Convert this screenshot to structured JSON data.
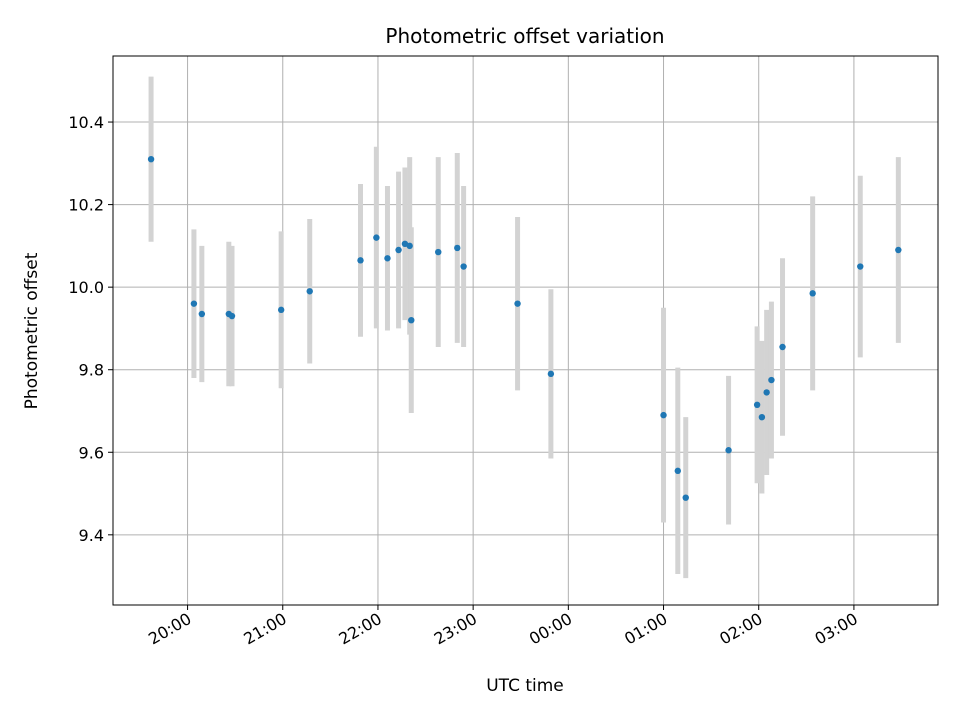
{
  "chart_data": {
    "type": "scatter",
    "title": "Photometric offset variation",
    "xlabel": "UTC time",
    "ylabel": "Photometric offset",
    "x_unit": "clock time (UTC), spanning midnight",
    "xlim": [
      "19:13",
      "03:53"
    ],
    "ylim": [
      9.23,
      10.56
    ],
    "x_ticks": [
      "20:00",
      "21:00",
      "22:00",
      "23:00",
      "00:00",
      "01:00",
      "02:00",
      "03:00"
    ],
    "y_ticks": [
      "9.4",
      "9.6",
      "9.8",
      "10.0",
      "10.2",
      "10.4"
    ],
    "y_tick_values": [
      9.4,
      9.6,
      9.8,
      10.0,
      10.2,
      10.4
    ],
    "grid": true,
    "marker_color": "#1f77b4",
    "errorbar_color": "#d3d3d3",
    "points": [
      {
        "t": "19:37",
        "y": 10.31,
        "err": 0.2
      },
      {
        "t": "20:04",
        "y": 9.96,
        "err": 0.18
      },
      {
        "t": "20:09",
        "y": 9.935,
        "err": 0.165
      },
      {
        "t": "20:26",
        "y": 9.935,
        "err": 0.175
      },
      {
        "t": "20:28",
        "y": 9.93,
        "err": 0.17
      },
      {
        "t": "20:59",
        "y": 9.945,
        "err": 0.19
      },
      {
        "t": "21:17",
        "y": 9.99,
        "err": 0.175
      },
      {
        "t": "21:49",
        "y": 10.065,
        "err": 0.185
      },
      {
        "t": "21:59",
        "y": 10.12,
        "err": 0.22
      },
      {
        "t": "22:06",
        "y": 10.07,
        "err": 0.175
      },
      {
        "t": "22:13",
        "y": 10.09,
        "err": 0.19
      },
      {
        "t": "22:17",
        "y": 10.105,
        "err": 0.185
      },
      {
        "t": "22:20",
        "y": 10.1,
        "err": 0.215
      },
      {
        "t": "22:21",
        "y": 9.92,
        "err": 0.225
      },
      {
        "t": "22:38",
        "y": 10.085,
        "err": 0.23
      },
      {
        "t": "22:50",
        "y": 10.095,
        "err": 0.23
      },
      {
        "t": "22:54",
        "y": 10.05,
        "err": 0.195
      },
      {
        "t": "23:28",
        "y": 9.96,
        "err": 0.21
      },
      {
        "t": "23:49",
        "y": 9.79,
        "err": 0.205
      },
      {
        "t": "01:00",
        "y": 9.69,
        "err": 0.26
      },
      {
        "t": "01:09",
        "y": 9.555,
        "err": 0.25
      },
      {
        "t": "01:14",
        "y": 9.49,
        "err": 0.195
      },
      {
        "t": "01:41",
        "y": 9.605,
        "err": 0.18
      },
      {
        "t": "01:59",
        "y": 9.715,
        "err": 0.19
      },
      {
        "t": "02:02",
        "y": 9.685,
        "err": 0.185
      },
      {
        "t": "02:05",
        "y": 9.745,
        "err": 0.2
      },
      {
        "t": "02:08",
        "y": 9.775,
        "err": 0.19
      },
      {
        "t": "02:15",
        "y": 9.855,
        "err": 0.215
      },
      {
        "t": "02:34",
        "y": 9.985,
        "err": 0.235
      },
      {
        "t": "03:04",
        "y": 10.05,
        "err": 0.22
      },
      {
        "t": "03:28",
        "y": 10.09,
        "err": 0.225
      }
    ]
  }
}
